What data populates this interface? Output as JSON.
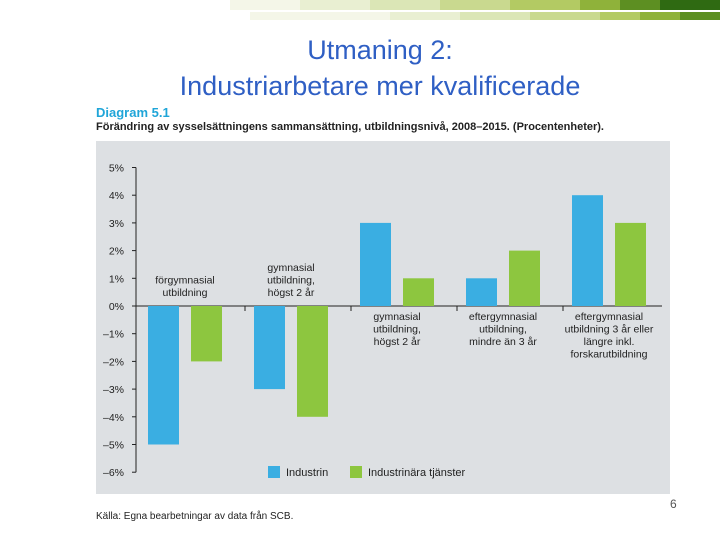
{
  "slide": {
    "title_line1": "Utmaning 2:",
    "title_line2": "Industriarbetare mer kvalificerade",
    "diagram_label": "Diagram 5.1",
    "diagram_subtitle": "Förändring av sysselsättningens sammansättning, utbildningsnivå, 2008–2015. (Procentenheter).",
    "source": "Källa: Egna bearbetningar av data från SCB.",
    "page_number": "6"
  },
  "colors": {
    "industrin": "#3aaee2",
    "tjanster": "#8dc63f",
    "title": "#2f5fc4",
    "chart_bg": "#dde0e3"
  },
  "chart_data": {
    "type": "bar",
    "categories": [
      [
        "förgymnasial",
        "utbildning"
      ],
      [
        "gymnasial",
        "utbildning,",
        "högst 2 år"
      ],
      [
        "gymnasial",
        "utbildning,",
        "högst 2 år"
      ],
      [
        "eftergymnasial",
        "utbildning,",
        "mindre än 3 år"
      ],
      [
        "eftergymnasial",
        "utbildning 3 år eller",
        "längre inkl.",
        "forskarutbildning"
      ]
    ],
    "label_placement": [
      "above",
      "above",
      "below",
      "below",
      "below"
    ],
    "series": [
      {
        "name": "Industrin",
        "color": "#3aaee2",
        "values": [
          -5,
          -3,
          3,
          1,
          4
        ]
      },
      {
        "name": "Industrinära tjänster",
        "color": "#8dc63f",
        "values": [
          -2,
          -4,
          1,
          2,
          3
        ]
      }
    ],
    "yticks": [
      "5%",
      "4%",
      "3%",
      "2%",
      "1%",
      "0%",
      "–1%",
      "–2%",
      "–3%",
      "–4%",
      "–5%",
      "–6%"
    ],
    "ylim": [
      -6,
      5
    ],
    "legend_position": "bottom"
  }
}
